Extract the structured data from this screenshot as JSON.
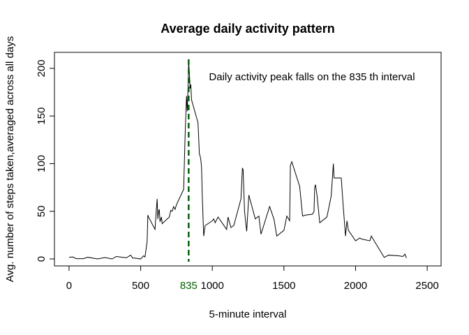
{
  "chart_data": {
    "type": "line",
    "title": "Average daily activity pattern",
    "x_label": "5-minute interval",
    "y_label": "Avg. number of steps taken,averaged across all days",
    "annotation": "Daily activity peak falls on the 835 th interval",
    "x": [
      0,
      25,
      50,
      100,
      130,
      200,
      250,
      300,
      330,
      400,
      430,
      445,
      455,
      500,
      520,
      530,
      545,
      550,
      555,
      600,
      610,
      615,
      620,
      625,
      630,
      635,
      645,
      650,
      700,
      710,
      720,
      730,
      740,
      750,
      800,
      810,
      820,
      825,
      830,
      835,
      840,
      845,
      850,
      855,
      900,
      910,
      915,
      920,
      925,
      930,
      940,
      950,
      1000,
      1010,
      1020,
      1040,
      1100,
      1110,
      1130,
      1150,
      1200,
      1210,
      1215,
      1225,
      1240,
      1255,
      1300,
      1325,
      1340,
      1400,
      1430,
      1450,
      1500,
      1520,
      1540,
      1545,
      1555,
      1610,
      1630,
      1650,
      1700,
      1710,
      1715,
      1720,
      1730,
      1750,
      1800,
      1830,
      1845,
      1850,
      1900,
      1915,
      1930,
      1940,
      1950,
      2000,
      2030,
      2040,
      2100,
      2110,
      2130,
      2200,
      2230,
      2300,
      2330,
      2345,
      2355
    ],
    "series": [
      {
        "color": "#000000",
        "values": [
          1.7,
          2.1,
          0.3,
          0.3,
          1.8,
          0,
          1.5,
          0,
          2.6,
          1.2,
          4,
          0.8,
          1,
          0,
          3.3,
          2.1,
          18,
          46,
          44,
          31,
          53,
          63,
          42,
          50,
          52,
          39,
          44,
          37,
          44,
          51,
          50,
          55,
          52,
          57,
          73,
          129,
          171,
          155,
          177,
          206,
          196,
          179,
          183,
          167,
          143,
          110,
          108,
          104,
          96,
          66,
          24,
          35,
          40,
          42,
          38,
          44,
          31,
          44,
          33,
          35,
          63,
          95,
          94,
          50,
          29,
          67,
          42,
          45,
          26,
          55,
          42,
          24,
          30,
          45,
          40,
          98,
          102,
          76,
          45,
          46,
          47,
          50,
          75,
          78,
          68,
          38,
          44,
          66,
          100,
          85,
          85,
          53,
          24,
          40,
          30,
          19,
          22,
          21,
          19,
          24,
          19,
          1.6,
          4,
          3.3,
          2.6,
          5,
          1.1
        ]
      }
    ],
    "peak_line": {
      "value": 835,
      "color": "#006400"
    },
    "xlim": [
      -102,
      2597
    ],
    "ylim": [
      -7.3,
      216.8
    ],
    "xticks": [
      0,
      500,
      1000,
      1500,
      2000,
      2500
    ],
    "yticks": [
      0,
      50,
      100,
      150,
      200
    ]
  }
}
